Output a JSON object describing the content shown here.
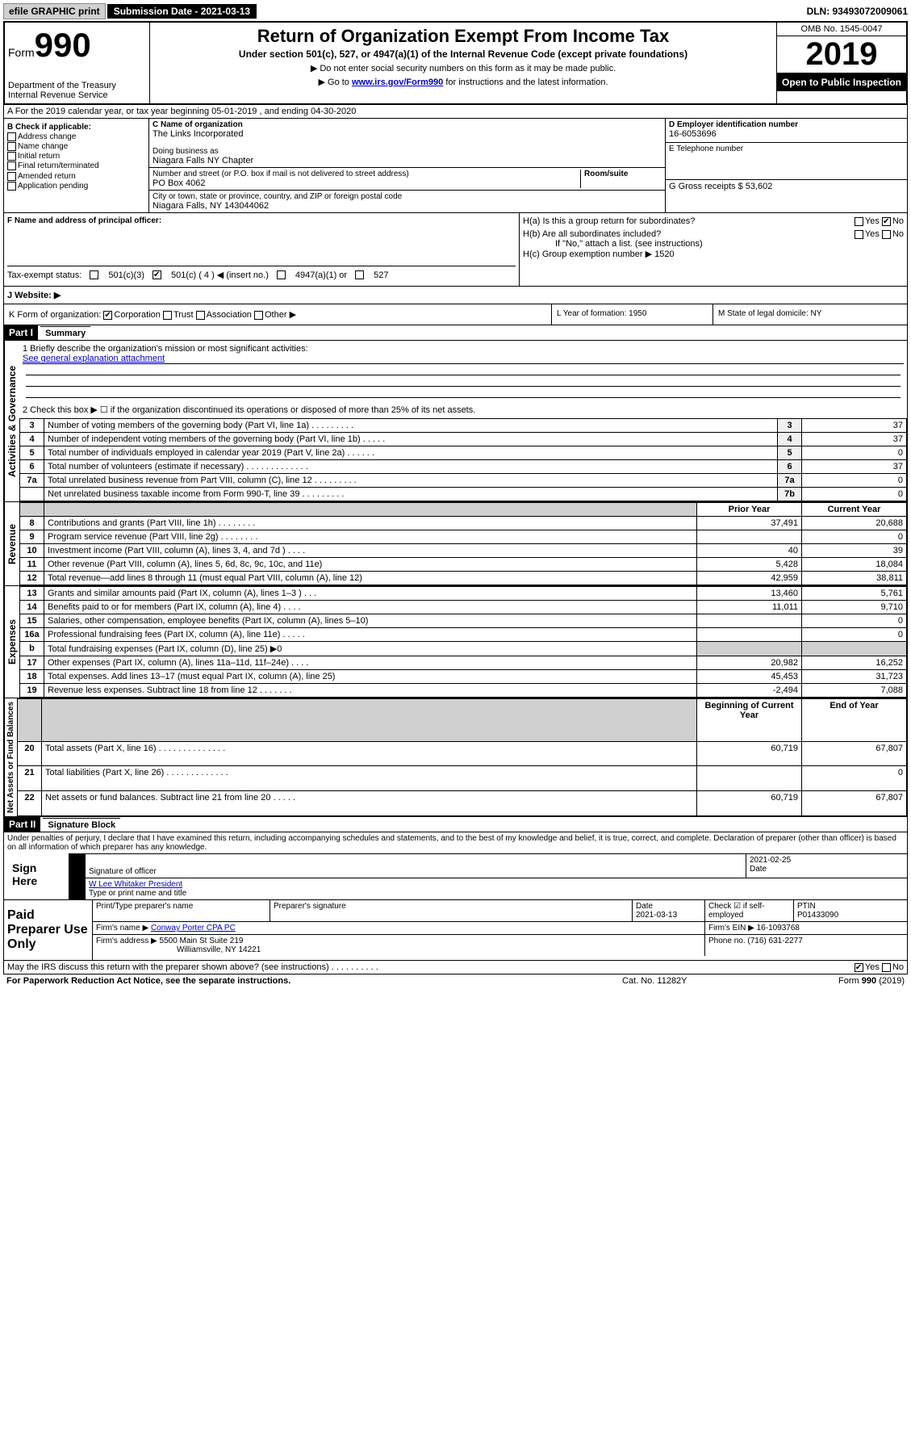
{
  "topbar": {
    "efile": "efile GRAPHIC print",
    "submission": "Submission Date - 2021-03-13",
    "dln": "DLN: 93493072009061"
  },
  "header": {
    "form_label": "Form",
    "form_number": "990",
    "dept1": "Department of the Treasury",
    "dept2": "Internal Revenue Service",
    "title": "Return of Organization Exempt From Income Tax",
    "subtitle": "Under section 501(c), 527, or 4947(a)(1) of the Internal Revenue Code (except private foundations)",
    "note1": "Do not enter social security numbers on this form as it may be made public.",
    "note2_pre": "Go to ",
    "note2_link": "www.irs.gov/Form990",
    "note2_post": " for instructions and the latest information.",
    "omb": "OMB No. 1545-0047",
    "year": "2019",
    "inspection": "Open to Public Inspection"
  },
  "section_a": "A For the 2019 calendar year, or tax year beginning 05-01-2019   , and ending 04-30-2020",
  "col_b": {
    "header": "B Check if applicable:",
    "items": [
      "Address change",
      "Name change",
      "Initial return",
      "Final return/terminated",
      "Amended return",
      "Application pending"
    ]
  },
  "col_c": {
    "name_label": "C Name of organization",
    "name": "The Links Incorporated",
    "dba_label": "Doing business as",
    "dba": "Niagara Falls NY Chapter",
    "addr_label": "Number and street (or P.O. box if mail is not delivered to street address)",
    "room_label": "Room/suite",
    "addr": "PO Box 4062",
    "city_label": "City or town, state or province, country, and ZIP or foreign postal code",
    "city": "Niagara Falls, NY  143044062"
  },
  "col_d": {
    "ein_label": "D Employer identification number",
    "ein": "16-6053696",
    "phone_label": "E Telephone number",
    "receipts_label": "G Gross receipts $ 53,602"
  },
  "principal": {
    "label": "F  Name and address of principal officer:",
    "ha": "H(a)  Is this a group return for subordinates?",
    "hb": "H(b)  Are all subordinates included?",
    "hb_note": "If \"No,\" attach a list. (see instructions)",
    "hc": "H(c)  Group exemption number ▶   1520",
    "yes": "Yes",
    "no": "No"
  },
  "tax_status": {
    "label": "Tax-exempt status:",
    "opt1": "501(c)(3)",
    "opt2": "501(c) ( 4 ) ◀ (insert no.)",
    "opt3": "4947(a)(1) or",
    "opt4": "527"
  },
  "website": "J   Website: ▶",
  "k_row": {
    "label": "K Form of organization:",
    "opts": [
      "Corporation",
      "Trust",
      "Association",
      "Other ▶"
    ],
    "l": "L Year of formation: 1950",
    "m": "M State of legal domicile: NY"
  },
  "part1": {
    "header": "Part I",
    "title": "Summary"
  },
  "summary": {
    "line1_label": "1   Briefly describe the organization's mission or most significant activities:",
    "line1_text": "See general explanation attachment",
    "line2": "2    Check this box ▶ ☐  if the organization discontinued its operations or disposed of more than 25% of its net assets.",
    "rows_gov": [
      {
        "n": "3",
        "text": "Number of voting members of the governing body (Part VI, line 1a)  .  .  .  .  .  .  .  .  .",
        "box": "3",
        "val": "37"
      },
      {
        "n": "4",
        "text": "Number of independent voting members of the governing body (Part VI, line 1b)   .  .  .  .  .",
        "box": "4",
        "val": "37"
      },
      {
        "n": "5",
        "text": "Total number of individuals employed in calendar year 2019 (Part V, line 2a)   .  .  .  .  .  .",
        "box": "5",
        "val": "0"
      },
      {
        "n": "6",
        "text": "Total number of volunteers (estimate if necessary)   .  .  .  .  .  .  .  .  .  .  .  .  .",
        "box": "6",
        "val": "37"
      },
      {
        "n": "7a",
        "text": "Total unrelated business revenue from Part VIII, column (C), line 12   .  .  .  .  .  .  .  .  .",
        "box": "7a",
        "val": "0"
      },
      {
        "n": "",
        "text": "Net unrelated business taxable income from Form 990-T, line 39   .  .  .  .  .  .  .  .  .",
        "box": "7b",
        "val": "0"
      }
    ],
    "prior_year": "Prior Year",
    "current_year": "Current Year",
    "rows_rev": [
      {
        "n": "8",
        "text": "Contributions and grants (Part VIII, line 1h)   .  .  .  .  .  .  .  .",
        "py": "37,491",
        "cy": "20,688"
      },
      {
        "n": "9",
        "text": "Program service revenue (Part VIII, line 2g)   .  .  .  .  .  .  .  .",
        "py": "",
        "cy": "0"
      },
      {
        "n": "10",
        "text": "Investment income (Part VIII, column (A), lines 3, 4, and 7d )   .  .  .  .",
        "py": "40",
        "cy": "39"
      },
      {
        "n": "11",
        "text": "Other revenue (Part VIII, column (A), lines 5, 6d, 8c, 9c, 10c, and 11e)",
        "py": "5,428",
        "cy": "18,084"
      },
      {
        "n": "12",
        "text": "Total revenue—add lines 8 through 11 (must equal Part VIII, column (A), line 12)",
        "py": "42,959",
        "cy": "38,811"
      }
    ],
    "rows_exp": [
      {
        "n": "13",
        "text": "Grants and similar amounts paid (Part IX, column (A), lines 1–3 )   .  .  .",
        "py": "13,460",
        "cy": "5,761"
      },
      {
        "n": "14",
        "text": "Benefits paid to or for members (Part IX, column (A), line 4)   .  .  .  .",
        "py": "11,011",
        "cy": "9,710"
      },
      {
        "n": "15",
        "text": "Salaries, other compensation, employee benefits (Part IX, column (A), lines 5–10)",
        "py": "",
        "cy": "0"
      },
      {
        "n": "16a",
        "text": "Professional fundraising fees (Part IX, column (A), line 11e)   .  .  .  .  .",
        "py": "",
        "cy": "0"
      },
      {
        "n": "b",
        "text": "Total fundraising expenses (Part IX, column (D), line 25) ▶0",
        "py": "shaded",
        "cy": "shaded"
      },
      {
        "n": "17",
        "text": "Other expenses (Part IX, column (A), lines 11a–11d, 11f–24e)   .  .  .  .",
        "py": "20,982",
        "cy": "16,252"
      },
      {
        "n": "18",
        "text": "Total expenses. Add lines 13–17 (must equal Part IX, column (A), line 25)",
        "py": "45,453",
        "cy": "31,723"
      },
      {
        "n": "19",
        "text": "Revenue less expenses. Subtract line 18 from line 12   .  .  .  .  .  .  .",
        "py": "-2,494",
        "cy": "7,088"
      }
    ],
    "beg_year": "Beginning of Current Year",
    "end_year": "End of Year",
    "rows_net": [
      {
        "n": "20",
        "text": "Total assets (Part X, line 16)   .  .  .  .  .  .  .  .  .  .  .  .  .  .",
        "py": "60,719",
        "cy": "67,807"
      },
      {
        "n": "21",
        "text": "Total liabilities (Part X, line 26)   .  .  .  .  .  .  .  .  .  .  .  .  .",
        "py": "",
        "cy": "0"
      },
      {
        "n": "22",
        "text": "Net assets or fund balances. Subtract line 21 from line 20   .  .  .  .  .",
        "py": "60,719",
        "cy": "67,807"
      }
    ],
    "vlabels": {
      "gov": "Activities & Governance",
      "rev": "Revenue",
      "exp": "Expenses",
      "net": "Net Assets or Fund Balances"
    }
  },
  "part2": {
    "header": "Part II",
    "title": "Signature Block",
    "intro": "Under penalties of perjury, I declare that I have examined this return, including accompanying schedules and statements, and to the best of my knowledge and belief, it is true, correct, and complete. Declaration of preparer (other than officer) is based on all information of which preparer has any knowledge.",
    "sign_here": "Sign Here",
    "sig_officer": "Signature of officer",
    "date": "Date",
    "date_val": "2021-02-25",
    "name_title": "W Lee Whitaker  President",
    "name_title_label": "Type or print name and title",
    "paid_label": "Paid Preparer Use Only",
    "prep_name_label": "Print/Type preparer's name",
    "prep_sig_label": "Preparer's signature",
    "prep_date_label": "Date",
    "prep_date": "2021-03-13",
    "check_if": "Check ☑ if self-employed",
    "ptin_label": "PTIN",
    "ptin": "P01433090",
    "firm_name_label": "Firm's name    ▶",
    "firm_name": "Conway Porter CPA PC",
    "firm_ein_label": "Firm's EIN ▶",
    "firm_ein": "16-1093768",
    "firm_addr_label": "Firm's address ▶",
    "firm_addr1": "5500 Main St Suite 219",
    "firm_addr2": "Williamsville, NY  14221",
    "phone_label": "Phone no.",
    "phone": "(716) 631-2277",
    "discuss": "May the IRS discuss this return with the preparer shown above? (see instructions)    .  .  .  .  .  .  .  .  .  .",
    "yes": "Yes",
    "no": "No"
  },
  "footer": {
    "paperwork": "For Paperwork Reduction Act Notice, see the separate instructions.",
    "cat": "Cat. No. 11282Y",
    "form": "Form 990 (2019)"
  }
}
